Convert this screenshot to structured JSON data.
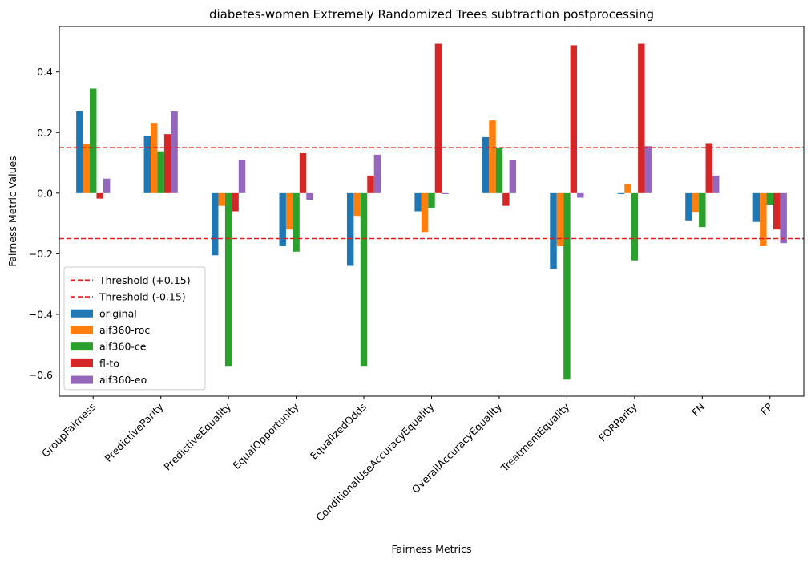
{
  "chart_data": {
    "type": "bar",
    "title": "diabetes-women Extremely Randomized Trees subtraction postprocessing",
    "xlabel": "Fairness Metrics",
    "ylabel": "Fairness Metric Values",
    "ylim": [
      -0.67,
      0.55
    ],
    "yticks": [
      "0.4",
      "0.2",
      "0.0",
      "−0.2",
      "−0.4",
      "−0.6"
    ],
    "ytick_values": [
      0.4,
      0.2,
      0.0,
      -0.2,
      -0.4,
      -0.6
    ],
    "grid": false,
    "legend_position": "lower-left",
    "categories": [
      "GroupFairness",
      "PredictiveParity",
      "PredictiveEquality",
      "EqualOpportunity",
      "EqualizedOdds",
      "ConditionalUseAccuracyEquality",
      "OverallAccuracyEquality",
      "TreatmentEquality",
      "FORParity",
      "FN",
      "FP"
    ],
    "thresholds": [
      {
        "label": "Threshold (+0.15)",
        "value": 0.15,
        "color": "#e41a1c"
      },
      {
        "label": "Threshold (-0.15)",
        "value": -0.15,
        "color": "#e41a1c"
      }
    ],
    "series": [
      {
        "name": "original",
        "color": "#1f77b4",
        "values": [
          0.27,
          0.19,
          -0.205,
          -0.175,
          -0.24,
          -0.06,
          0.185,
          -0.25,
          -0.003,
          -0.09,
          -0.095
        ]
      },
      {
        "name": "aif360-roc",
        "color": "#ff7f0e",
        "values": [
          0.163,
          0.232,
          -0.042,
          -0.12,
          -0.075,
          -0.128,
          0.24,
          -0.175,
          0.03,
          -0.062,
          -0.175
        ]
      },
      {
        "name": "aif360-ce",
        "color": "#2ca02c",
        "values": [
          0.345,
          0.138,
          -0.57,
          -0.193,
          -0.57,
          -0.048,
          0.15,
          -0.615,
          -0.222,
          -0.112,
          -0.038
        ]
      },
      {
        "name": "fl-to",
        "color": "#d62728",
        "values": [
          -0.018,
          0.195,
          -0.06,
          0.132,
          0.058,
          0.493,
          -0.042,
          0.488,
          0.493,
          0.165,
          -0.12
        ]
      },
      {
        "name": "aif360-eo",
        "color": "#9467bd",
        "values": [
          0.048,
          0.27,
          0.11,
          -0.022,
          0.127,
          -0.003,
          0.108,
          -0.015,
          0.155,
          0.058,
          -0.165
        ]
      }
    ]
  }
}
